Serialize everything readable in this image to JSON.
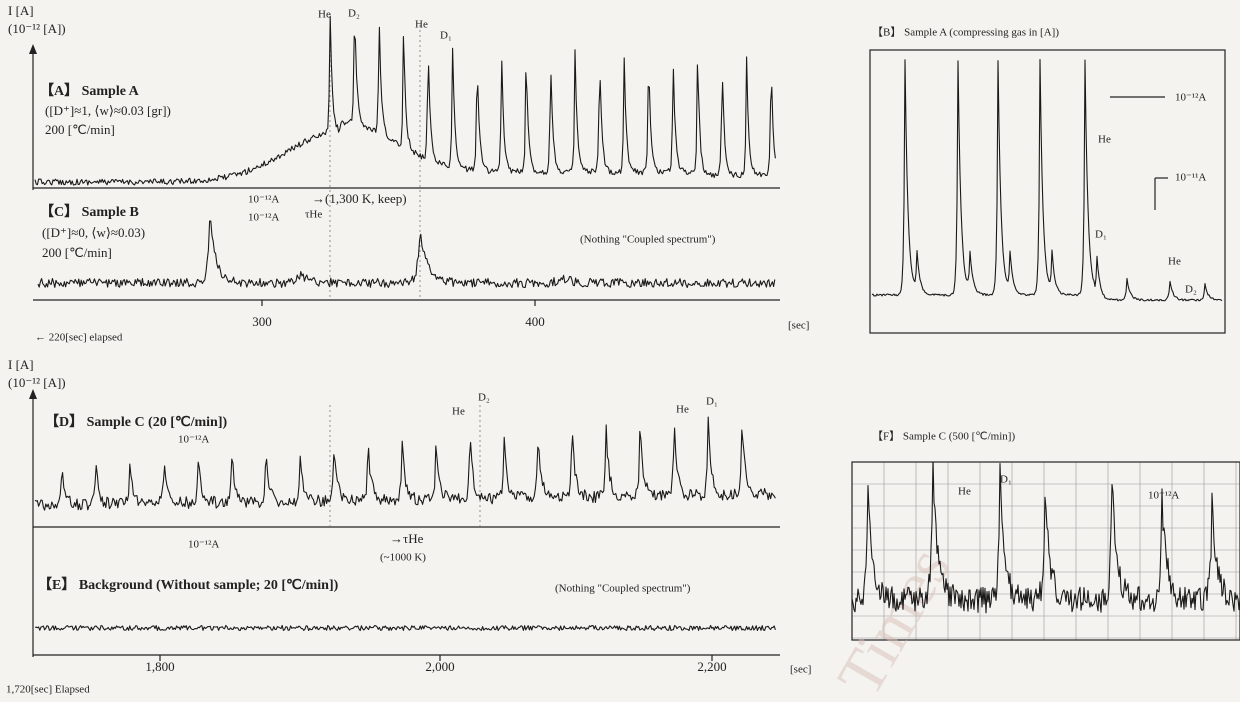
{
  "top_axis": {
    "unit": "I [A]",
    "scale": "(10⁻¹² [A])"
  },
  "panel_a": {
    "title": "【A】 Sample A",
    "params": "([D⁺]≈1, ⟨w⟩≈0.03 [gr])",
    "rate": "200 [℃/min]",
    "scale_bar": "10⁻¹²A",
    "hold": "→(1,300 K, keep)",
    "tau": "τHe",
    "peaks": [
      "He",
      "D₂",
      "He",
      "D₁"
    ]
  },
  "panel_c": {
    "title": "【C】 Sample B",
    "params": "([D⁺]≈0, ⟨w⟩≈0.03)",
    "rate": "200 [℃/min]",
    "scale_bar": "10⁻¹²A",
    "note": "(Nothing \"Coupled spectrum\")"
  },
  "axis_1": {
    "ticks": [
      "300",
      "400"
    ],
    "unit": "[sec]",
    "start": "← 220[sec]  elapsed"
  },
  "panel_b": {
    "title": "【B】 Sample A (compressing gas in [A])",
    "scale_bar_1": "10⁻¹²A",
    "scale_bar_2": "10⁻¹¹A",
    "peaks": [
      "He",
      "D₁",
      "He",
      "D₂"
    ]
  },
  "bottom_axis": {
    "unit": "I [A]",
    "scale": "(10⁻¹² [A])"
  },
  "panel_d": {
    "title": "【D】 Sample C (20 [℃/min])",
    "scale_bar": "10⁻¹²A",
    "scale_bar_2": "10⁻¹²A",
    "tau": "→τHe",
    "temp": "(~1000 K)",
    "peaks": [
      "He",
      "D₂",
      "He",
      "D₁"
    ]
  },
  "panel_e": {
    "title": "【E】 Background (Without sample; 20 [℃/min])",
    "note": "(Nothing \"Coupled spectrum\")"
  },
  "axis_2": {
    "ticks": [
      "1,800",
      "2,000",
      "2,200"
    ],
    "unit": "[sec]",
    "start": "1,720[sec]  Elapsed"
  },
  "panel_f": {
    "title": "【F】 Sample C (500 [℃/min])",
    "scale_bar": "10⁻¹²A",
    "peaks": [
      "He",
      "D₁"
    ]
  },
  "watermark": "Times"
}
